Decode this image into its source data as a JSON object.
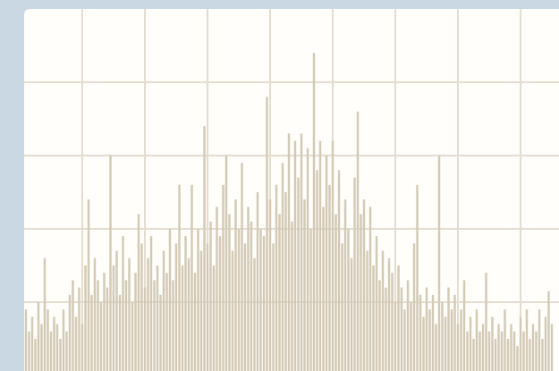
{
  "chart_data": {
    "type": "bar",
    "color": "#d3c9b5",
    "grid": true,
    "xlim": [
      0,
      86
    ],
    "ylim": [
      0,
      5
    ],
    "xticks": [
      10,
      20,
      30,
      40,
      50,
      60,
      70,
      80
    ],
    "yticks": [
      1,
      2,
      3,
      4
    ],
    "x": [
      1,
      1.5,
      2,
      2.5,
      3,
      3.5,
      4,
      4.5,
      5,
      5.5,
      6,
      6.5,
      7,
      7.5,
      8,
      8.5,
      9,
      9.5,
      10,
      10.5,
      11,
      11.5,
      12,
      12.5,
      13,
      13.5,
      14,
      14.5,
      15,
      15.5,
      16,
      16.5,
      17,
      17.5,
      18,
      18.5,
      19,
      19.5,
      20,
      20.5,
      21,
      21.5,
      22,
      22.5,
      23,
      23.5,
      24,
      24.5,
      25,
      25.5,
      26,
      26.5,
      27,
      27.5,
      28,
      28.5,
      29,
      29.5,
      30,
      30.5,
      31,
      31.5,
      32,
      32.5,
      33,
      33.5,
      34,
      34.5,
      35,
      35.5,
      36,
      36.5,
      37,
      37.5,
      38,
      38.5,
      39,
      39.5,
      40,
      40.5,
      41,
      41.5,
      42,
      42.5,
      43,
      43.5,
      44,
      44.5,
      45,
      45.5,
      46,
      46.5,
      47,
      47.5,
      48,
      48.5,
      49,
      49.5,
      50,
      50.5,
      51,
      51.5,
      52,
      52.5,
      53,
      53.5,
      54,
      54.5,
      55,
      55.5,
      56,
      56.5,
      57,
      57.5,
      58,
      58.5,
      59,
      59.5,
      60,
      60.5,
      61,
      61.5,
      62,
      62.5,
      63,
      63.5,
      64,
      64.5,
      65,
      65.5,
      66,
      66.5,
      67,
      67.5,
      68,
      68.5,
      69,
      69.5,
      70,
      70.5,
      71,
      71.5,
      72,
      72.5,
      73,
      73.5,
      74,
      74.5,
      75,
      75.5,
      76,
      76.5,
      77,
      77.5,
      78,
      78.5,
      79,
      79.5,
      80,
      80.5,
      81,
      81.5,
      82,
      82.5,
      83,
      83.5,
      84,
      84.5,
      85
    ],
    "values": [
      0.9,
      0.6,
      0.8,
      0.5,
      1.0,
      0.7,
      1.6,
      0.9,
      0.6,
      0.8,
      0.7,
      0.5,
      0.9,
      0.6,
      1.1,
      1.3,
      0.8,
      1.2,
      0.7,
      1.5,
      2.4,
      1.1,
      1.6,
      1.3,
      1.0,
      1.4,
      1.2,
      3.0,
      1.5,
      1.7,
      1.1,
      1.9,
      1.3,
      1.6,
      1.0,
      1.4,
      2.2,
      1.8,
      1.2,
      1.6,
      1.9,
      1.3,
      1.5,
      1.1,
      1.7,
      1.4,
      2.0,
      1.3,
      1.8,
      2.6,
      1.5,
      1.9,
      1.6,
      2.6,
      1.4,
      2.0,
      1.7,
      3.4,
      1.8,
      2.1,
      1.5,
      2.3,
      1.9,
      2.6,
      3.0,
      2.2,
      1.7,
      2.4,
      2.0,
      2.9,
      1.8,
      2.3,
      2.1,
      1.6,
      2.5,
      2.0,
      1.9,
      3.8,
      2.4,
      1.8,
      2.6,
      2.2,
      2.9,
      2.5,
      3.3,
      2.1,
      3.2,
      2.7,
      3.3,
      2.4,
      3.1,
      2.0,
      4.4,
      2.8,
      3.2,
      2.3,
      3.0,
      2.6,
      3.2,
      2.2,
      2.8,
      1.8,
      2.4,
      2.0,
      1.6,
      2.7,
      3.6,
      2.2,
      2.4,
      1.7,
      2.3,
      1.5,
      1.9,
      1.3,
      1.7,
      1.2,
      1.6,
      1.4,
      1.0,
      1.5,
      1.2,
      0.9,
      1.3,
      1.0,
      1.8,
      2.6,
      1.1,
      0.8,
      1.2,
      0.9,
      1.1,
      0.7,
      3.0,
      1.0,
      0.8,
      1.2,
      0.9,
      1.1,
      0.7,
      0.9,
      1.3,
      0.6,
      0.8,
      0.5,
      0.9,
      0.6,
      0.7,
      1.4,
      0.6,
      0.8,
      0.5,
      0.7,
      0.6,
      0.9,
      0.5,
      0.7,
      0.6,
      0.4,
      0.8,
      0.6,
      0.9,
      0.5,
      0.7,
      0.6,
      0.9,
      0.5,
      0.8,
      1.15,
      0.7
    ]
  }
}
